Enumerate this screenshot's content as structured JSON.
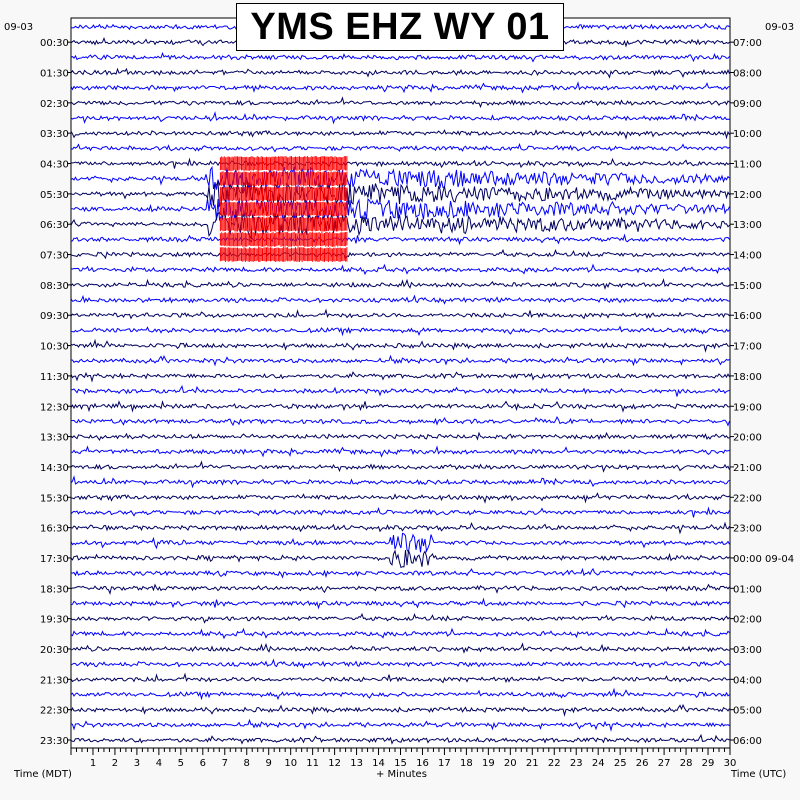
{
  "chart_data": {
    "type": "line",
    "title": "YMS EHZ WY 01",
    "xlabel": "+ Minutes",
    "x_ticks": [
      "1",
      "2",
      "3",
      "4",
      "5",
      "6",
      "7",
      "8",
      "9",
      "10",
      "11",
      "12",
      "13",
      "14",
      "15",
      "16",
      "17",
      "18",
      "19",
      "20",
      "21",
      "22",
      "23",
      "24",
      "25",
      "26",
      "27",
      "28",
      "29",
      "30"
    ],
    "xlim": [
      0,
      30
    ],
    "left_axis": {
      "label": "Time (MDT)",
      "date": "09-03",
      "ticks": [
        "00:30",
        "01:30",
        "02:30",
        "03:30",
        "04:30",
        "05:30",
        "06:30",
        "07:30",
        "08:30",
        "09:30",
        "10:30",
        "11:30",
        "12:30",
        "13:30",
        "14:30",
        "15:30",
        "16:30",
        "17:30",
        "18:30",
        "19:30",
        "20:30",
        "21:30",
        "22:30",
        "23:30"
      ]
    },
    "right_axis": {
      "label": "Time (UTC)",
      "date": "09-03",
      "ticks": [
        "07:00",
        "08:00",
        "09:00",
        "10:00",
        "11:00",
        "12:00",
        "13:00",
        "14:00",
        "15:00",
        "16:00",
        "17:00",
        "18:00",
        "19:00",
        "20:00",
        "21:00",
        "22:00",
        "23:00",
        "00:00 09-04",
        "01:00",
        "02:00",
        "03:00",
        "04:00",
        "05:00",
        "06:00"
      ]
    },
    "traces_per_hour": 2,
    "trace_minutes": 30,
    "trace_colors": [
      "#0000ff",
      "#000060"
    ],
    "clipped_color": "#ff0000",
    "events": [
      {
        "mdt": "04:30",
        "start_min": 6.8,
        "end_min": 12.6,
        "description": "clipped high-amplitude signal"
      },
      {
        "mdt": "05:30",
        "start_min": 6.2,
        "end_min": 30,
        "description": "large emergent signal with long coda"
      }
    ]
  }
}
